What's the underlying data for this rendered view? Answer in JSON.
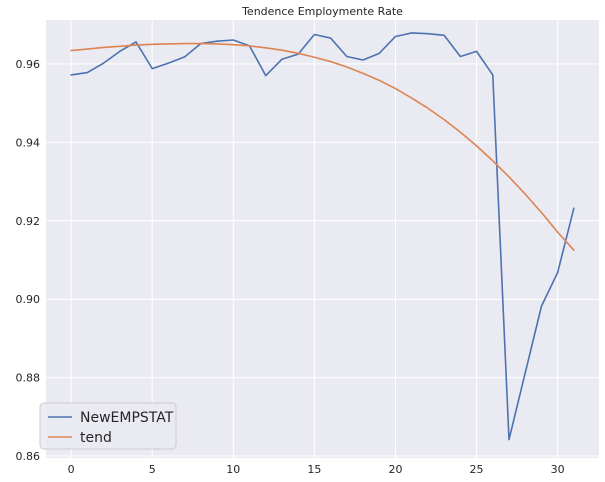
{
  "chart_data": {
    "type": "line",
    "title": "Tendence Employmente Rate",
    "xlabel": "",
    "ylabel": "",
    "xlim": [
      -1.55,
      32.55
    ],
    "ylim": [
      0.8595,
      0.9712
    ],
    "x_ticks": [
      0,
      5,
      10,
      15,
      20,
      25,
      30
    ],
    "x_tick_labels": [
      "0",
      "5",
      "10",
      "15",
      "20",
      "25",
      "30"
    ],
    "y_ticks": [
      0.86,
      0.88,
      0.9,
      0.92,
      0.94,
      0.96
    ],
    "y_tick_labels": [
      "0.86",
      "0.88",
      "0.90",
      "0.92",
      "0.94",
      "0.96"
    ],
    "grid": true,
    "legend_position": "lower-left",
    "x": [
      0,
      1,
      2,
      3,
      4,
      5,
      6,
      7,
      8,
      9,
      10,
      11,
      12,
      13,
      14,
      15,
      16,
      17,
      18,
      19,
      20,
      21,
      22,
      23,
      24,
      25,
      26,
      27,
      28,
      29,
      30,
      31
    ],
    "series": [
      {
        "name": "NewEMPSTAT",
        "color": "#4c72b0",
        "values": [
          0.9572,
          0.9578,
          0.9602,
          0.9632,
          0.9656,
          0.9588,
          0.9602,
          0.9618,
          0.9652,
          0.9658,
          0.9661,
          0.9646,
          0.957,
          0.9612,
          0.9625,
          0.9675,
          0.9666,
          0.9619,
          0.961,
          0.9627,
          0.967,
          0.9679,
          0.9677,
          0.9673,
          0.9619,
          0.9632,
          0.9572,
          0.8642,
          0.8812,
          0.8982,
          0.9068,
          0.9232
        ]
      },
      {
        "name": "tend",
        "color": "#dd8452",
        "values": [
          0.9634,
          0.9638,
          0.9642,
          0.9645,
          0.9648,
          0.965,
          0.9651,
          0.9652,
          0.9652,
          0.9651,
          0.9649,
          0.9646,
          0.9641,
          0.9635,
          0.9627,
          0.9617,
          0.9606,
          0.9592,
          0.9576,
          0.9558,
          0.9537,
          0.9513,
          0.9487,
          0.9458,
          0.9426,
          0.9391,
          0.9353,
          0.9312,
          0.9268,
          0.9221,
          0.9171,
          0.9125
        ]
      }
    ]
  }
}
